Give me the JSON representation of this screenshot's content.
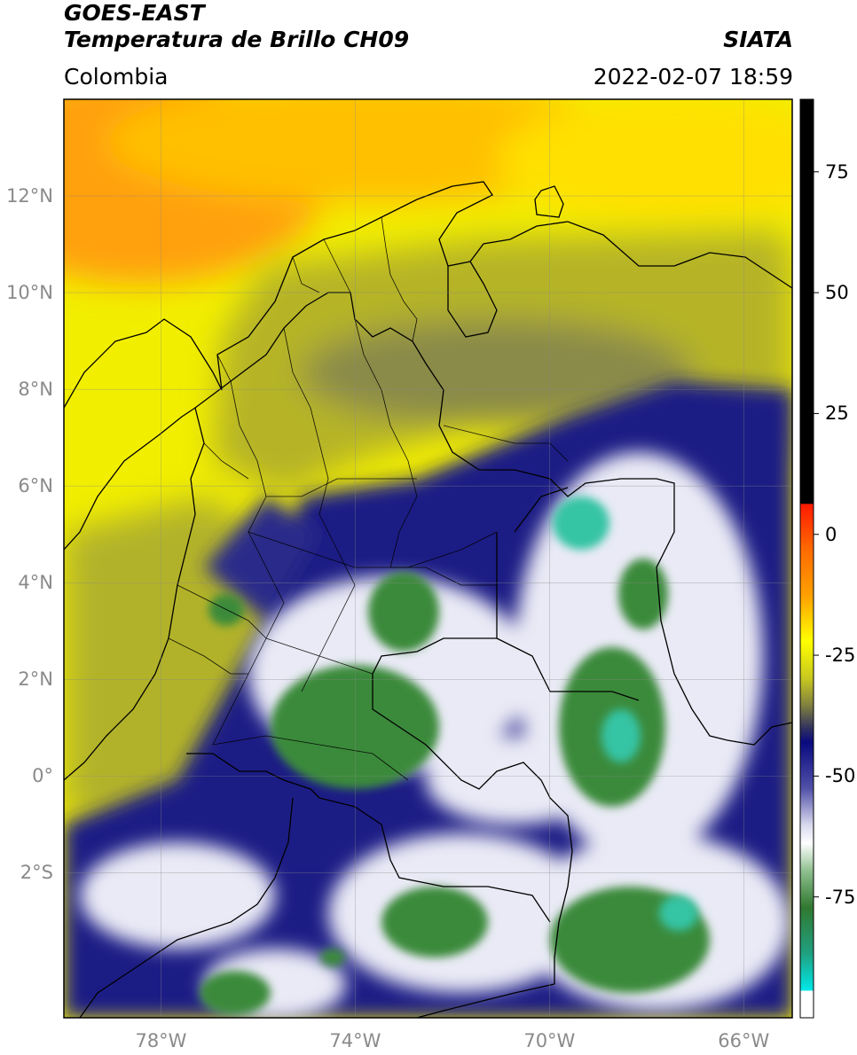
{
  "header": {
    "title_line1": "GOES-EAST",
    "title_line2": "Temperatura de Brillo CH09",
    "source": "SIATA",
    "region": "Colombia",
    "datetime": "2022-02-07 18:59"
  },
  "map": {
    "lon_range": [
      -80,
      -65
    ],
    "lat_range": [
      -5,
      14
    ],
    "lat_ticks": [
      {
        "value": 12,
        "label": "12°N"
      },
      {
        "value": 10,
        "label": "10°N"
      },
      {
        "value": 8,
        "label": "8°N"
      },
      {
        "value": 6,
        "label": "6°N"
      },
      {
        "value": 4,
        "label": "4°N"
      },
      {
        "value": 2,
        "label": "2°N"
      },
      {
        "value": 0,
        "label": "0°"
      },
      {
        "value": -2,
        "label": "2°S"
      }
    ],
    "lon_ticks": [
      {
        "value": -78,
        "label": "78°W"
      },
      {
        "value": -74,
        "label": "74°W"
      },
      {
        "value": -70,
        "label": "70°W"
      },
      {
        "value": -66,
        "label": "66°W"
      }
    ],
    "colors": {
      "warm_orange": "#ff9a10",
      "yellow": "#ffff00",
      "olive": "#b8b820",
      "navy": "#1a1a80",
      "white": "#f4f4fb",
      "green": "#3a8a3a",
      "teal": "#30c8a8"
    }
  },
  "colorbar": {
    "range": [
      -100,
      90
    ],
    "ticks": [
      {
        "value": 75,
        "label": "75"
      },
      {
        "value": 50,
        "label": "50"
      },
      {
        "value": 25,
        "label": "25"
      },
      {
        "value": 0,
        "label": "0"
      },
      {
        "value": -25,
        "label": "-25"
      },
      {
        "value": -50,
        "label": "-50"
      },
      {
        "value": -75,
        "label": "-75"
      }
    ]
  }
}
